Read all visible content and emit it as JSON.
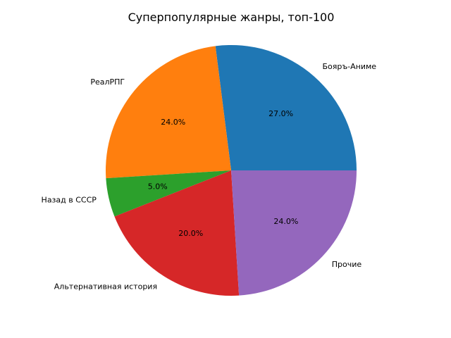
{
  "chart_data": {
    "type": "pie",
    "title": "Суперпопулярные жанры, топ-100",
    "categories": [
      "Бояръ-Аниме",
      "РеалРПГ",
      "Назад в СССР",
      "Альтернативная история",
      "Прочие"
    ],
    "values": [
      27.0,
      24.0,
      5.0,
      20.0,
      24.0
    ],
    "percent_labels": [
      "27.0%",
      "24.0%",
      "5.0%",
      "20.0%",
      "24.0%"
    ],
    "colors": [
      "#1f77b4",
      "#ff7f0e",
      "#2ca02c",
      "#d62728",
      "#9467bd"
    ],
    "start_angle_deg": 0,
    "direction": "counterclockwise",
    "legend": "none"
  }
}
